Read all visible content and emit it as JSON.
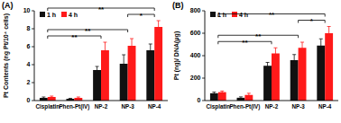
{
  "chart_data": [
    {
      "type": "bar",
      "title": "(A)",
      "y_label": "Pt Contents (ng Pt/10⁴ cells)",
      "categories": [
        "Cisplatin",
        "Phen-Pt(IV)",
        "NP-2",
        "NP-3",
        "NP-4"
      ],
      "series": [
        {
          "name": "1 h",
          "color": "#111111",
          "values": [
            0.3,
            0.2,
            3.4,
            4.1,
            5.6
          ],
          "errors": [
            0.1,
            0.05,
            0.4,
            1.0,
            0.7
          ]
        },
        {
          "name": "4 h",
          "color": "#ff1a1a",
          "values": [
            0.4,
            0.3,
            5.6,
            6.1,
            8.2
          ],
          "errors": [
            0.1,
            0.1,
            0.9,
            0.8,
            0.7
          ]
        }
      ],
      "ylim": [
        0,
        10
      ],
      "yticks": [
        0,
        2,
        4,
        6,
        8,
        10
      ],
      "legend": "upper-left",
      "annotations": [
        {
          "text": "**",
          "from": 0,
          "to": 2
        },
        {
          "text": "**",
          "from": 0,
          "to": 3
        },
        {
          "text": "*",
          "from": 3,
          "to": 4
        },
        {
          "text": "**",
          "from": 0,
          "to": 4
        }
      ]
    },
    {
      "type": "bar",
      "title": "(B)",
      "y_label": "Pt (ng)/ DNA(μg)",
      "categories": [
        "Cisplatin",
        "Phen-Pt(IV)",
        "NP-2",
        "NP-3",
        "NP-4"
      ],
      "series": [
        {
          "name": "1 h",
          "color": "#111111",
          "values": [
            65,
            25,
            310,
            360,
            490
          ],
          "errors": [
            10,
            8,
            30,
            50,
            60
          ]
        },
        {
          "name": "4 h",
          "color": "#ff1a1a",
          "values": [
            75,
            50,
            420,
            470,
            600
          ],
          "errors": [
            10,
            15,
            50,
            50,
            60
          ]
        }
      ],
      "ylim": [
        0,
        800
      ],
      "yticks": [
        0,
        200,
        400,
        600,
        800
      ],
      "legend": "upper-left",
      "annotations": [
        {
          "text": "**",
          "from": 0,
          "to": 2
        },
        {
          "text": "**",
          "from": 0,
          "to": 3
        },
        {
          "text": "*",
          "from": 3,
          "to": 4
        },
        {
          "text": "**",
          "from": 0,
          "to": 4
        }
      ]
    }
  ]
}
